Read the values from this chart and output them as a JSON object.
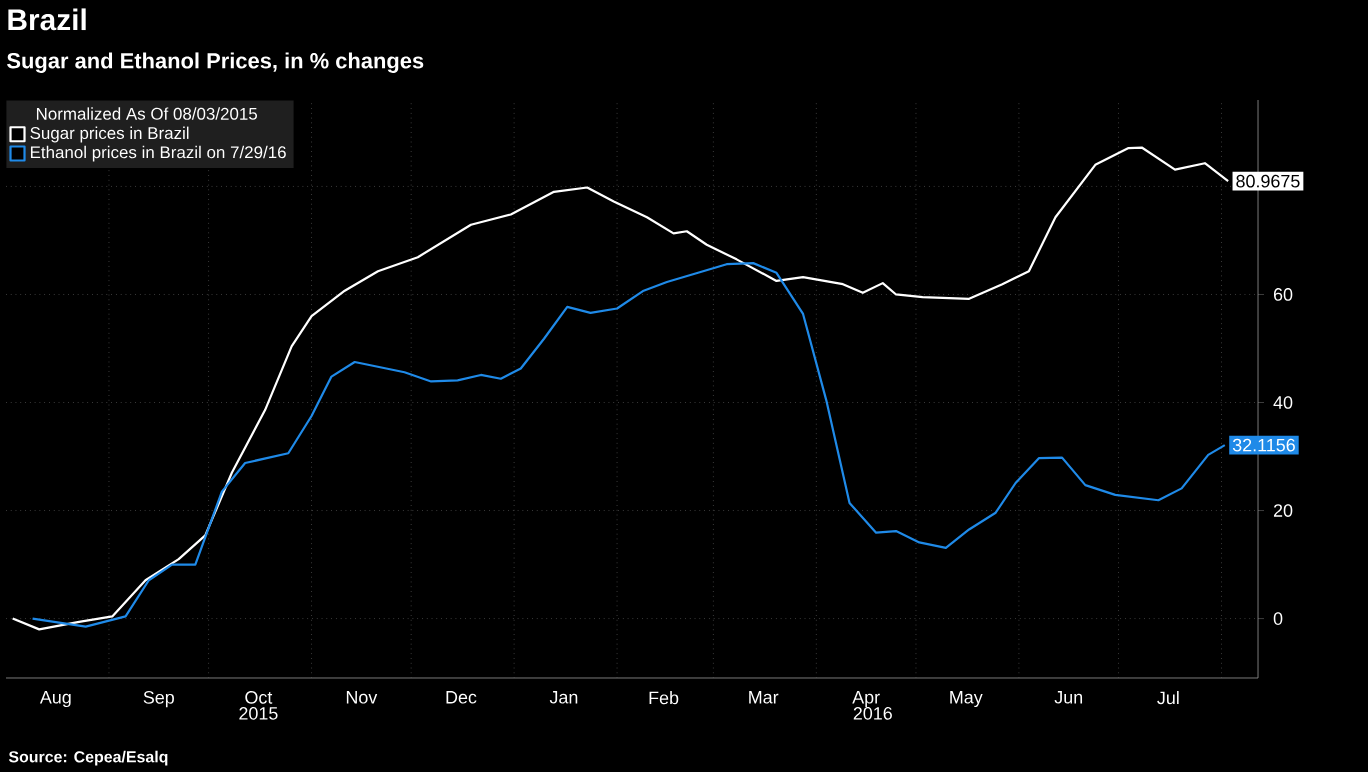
{
  "chart_data": {
    "type": "line",
    "title": "Brazil",
    "subtitle": "Sugar and Ethanol Prices, in % changes",
    "legend_title": "Normalized As Of 08/03/2015",
    "legend": "top left",
    "grid": true,
    "annotations": [
      "Source: Cepea/Esalq"
    ],
    "xlim": [
      "2015-08-01",
      "2016-08-12"
    ],
    "ylim": [
      -11,
      96
    ],
    "xticks": [
      {
        "value": "2015-08-16",
        "label": "Aug"
      },
      {
        "value": "2015-09-16",
        "label": "Sep"
      },
      {
        "value": "2015-10-16",
        "label": "Oct"
      },
      {
        "value": "2015-11-16",
        "label": "Nov"
      },
      {
        "value": "2015-12-16",
        "label": "Dec"
      },
      {
        "value": "2016-01-16",
        "label": "Jan"
      },
      {
        "value": "2016-02-15",
        "label": "Feb"
      },
      {
        "value": "2016-03-16",
        "label": "Mar"
      },
      {
        "value": "2016-04-16",
        "label": "Apr"
      },
      {
        "value": "2016-05-16",
        "label": "May"
      },
      {
        "value": "2016-06-16",
        "label": "Jun"
      },
      {
        "value": "2016-07-16",
        "label": "Jul"
      },
      {
        "value": "2015-09-01",
        "label": null
      },
      {
        "value": "2015-10-01",
        "label": null
      },
      {
        "value": "2015-11-01",
        "label": null
      },
      {
        "value": "2015-12-01",
        "label": null
      },
      {
        "value": "2016-01-01",
        "label": null
      },
      {
        "value": "2016-02-01",
        "label": null
      },
      {
        "value": "2016-03-01",
        "label": null
      },
      {
        "value": "2016-04-01",
        "label": null
      },
      {
        "value": "2016-05-01",
        "label": null
      },
      {
        "value": "2016-06-01",
        "label": null
      },
      {
        "value": "2016-07-01",
        "label": null
      },
      {
        "value": "2016-08-01",
        "label": null
      }
    ],
    "x2lim": [
      "2015-08-01",
      "2016-08-12"
    ],
    "x2ticks": [
      {
        "value": "2015-10-16",
        "label": "2015"
      },
      {
        "value": "2016-04-18",
        "label": "2016"
      }
    ],
    "yticks": [
      0,
      20,
      40,
      60,
      {
        "value": 80,
        "label": null
      }
    ],
    "series": [
      {
        "name": "Sugar prices in Brazil",
        "color": "#ffffff",
        "x": [
          "2015-08-03",
          "2015-08-11",
          "2015-08-23",
          "2015-09-02",
          "2015-09-12",
          "2015-09-22",
          "2015-09-30",
          "2015-10-08",
          "2015-10-18",
          "2015-10-26",
          "2015-11-01",
          "2015-11-11",
          "2015-11-21",
          "2015-12-03",
          "2015-12-19",
          "2015-12-31",
          "2016-01-13",
          "2016-01-23",
          "2016-01-31",
          "2016-02-10",
          "2016-02-18",
          "2016-02-22",
          "2016-02-28",
          "2016-03-08",
          "2016-03-20",
          "2016-03-28",
          "2016-04-09",
          "2016-04-15",
          "2016-04-21",
          "2016-04-25",
          "2016-05-03",
          "2016-05-17",
          "2016-05-27",
          "2016-06-04",
          "2016-06-12",
          "2016-06-24",
          "2016-07-04",
          "2016-07-08",
          "2016-07-18",
          "2016-07-27",
          "2016-08-03"
        ],
        "values": [
          0,
          -2,
          -0.6,
          0.4,
          7.1,
          11,
          15.4,
          27,
          38.6,
          50.4,
          56,
          60.7,
          64.3,
          66.9,
          72.9,
          74.8,
          79,
          79.8,
          77.2,
          74.3,
          71.3,
          71.7,
          69.2,
          66.5,
          62.5,
          63.2,
          61.9,
          60.3,
          62.1,
          60,
          59.5,
          59.2,
          61.9,
          64.3,
          74.3,
          84,
          87.1,
          87.2,
          83.1,
          84.3,
          80.9675
        ],
        "value_labels": [
          null,
          null,
          null,
          null,
          null,
          null,
          null,
          null,
          null,
          null,
          null,
          null,
          null,
          null,
          null,
          null,
          null,
          null,
          null,
          null,
          null,
          null,
          null,
          null,
          null,
          null,
          null,
          null,
          null,
          null,
          null,
          null,
          null,
          null,
          null,
          null,
          null,
          null,
          null,
          null,
          "80.9675"
        ]
      },
      {
        "name": "Ethanol prices in Brazil on 7/29/16",
        "color": "#1f8ae8",
        "x": [
          "2015-08-09",
          "2015-08-25",
          "2015-09-06",
          "2015-09-13",
          "2015-09-20",
          "2015-09-27",
          "2015-10-05",
          "2015-10-12",
          "2015-10-25",
          "2015-11-01",
          "2015-11-07",
          "2015-11-14",
          "2015-11-29",
          "2015-12-07",
          "2015-12-15",
          "2015-12-22",
          "2015-12-28",
          "2016-01-03",
          "2016-01-10",
          "2016-01-17",
          "2016-01-24",
          "2016-02-01",
          "2016-02-09",
          "2016-02-16",
          "2016-03-05",
          "2016-03-13",
          "2016-03-20",
          "2016-03-28",
          "2016-04-04",
          "2016-04-11",
          "2016-04-19",
          "2016-04-25",
          "2016-05-02",
          "2016-05-10",
          "2016-05-17",
          "2016-05-25",
          "2016-05-31",
          "2016-06-07",
          "2016-06-14",
          "2016-06-21",
          "2016-06-30",
          "2016-07-13",
          "2016-07-20",
          "2016-07-28",
          "2016-08-02"
        ],
        "values": [
          0,
          -1.5,
          0.4,
          7.1,
          10,
          10,
          23.5,
          28.8,
          30.6,
          37.5,
          44.8,
          47.5,
          45.6,
          43.9,
          44.1,
          45.1,
          44.4,
          46.3,
          51.8,
          57.7,
          56.6,
          57.4,
          60.7,
          62.3,
          65.6,
          65.8,
          64,
          56.4,
          40.4,
          21.4,
          15.9,
          16.2,
          14.1,
          13.1,
          16.5,
          19.6,
          25.1,
          29.7,
          29.8,
          24.7,
          22.9,
          21.9,
          24.1,
          30.3,
          32.1156
        ],
        "value_labels": [
          null,
          null,
          null,
          null,
          null,
          null,
          null,
          null,
          null,
          null,
          null,
          null,
          null,
          null,
          null,
          null,
          null,
          null,
          null,
          null,
          null,
          null,
          null,
          null,
          null,
          null,
          null,
          null,
          null,
          null,
          null,
          null,
          null,
          null,
          null,
          null,
          null,
          null,
          null,
          null,
          null,
          null,
          null,
          null,
          "32.1156"
        ]
      }
    ]
  }
}
